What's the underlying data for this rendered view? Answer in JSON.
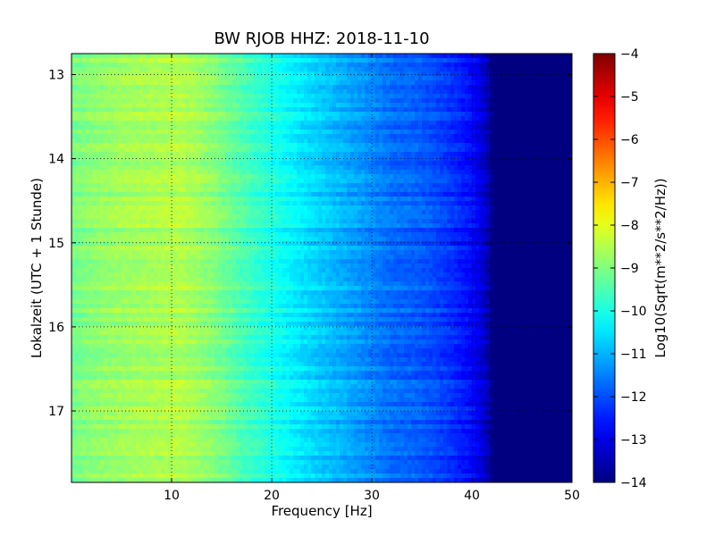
{
  "chart_data": {
    "type": "heatmap",
    "title": "BW RJOB HHZ: 2018-11-10",
    "xlabel": "Frequency [Hz]",
    "ylabel": "Lokalzeit (UTC + 1 Stunde)",
    "xlim": [
      0,
      50
    ],
    "ylim_hours": [
      12.75,
      17.85
    ],
    "y_axis_direction": "increasing-downward",
    "x_ticks": [
      10,
      20,
      30,
      40,
      50
    ],
    "y_ticks": [
      13,
      14,
      15,
      16,
      17
    ],
    "grid": true,
    "colormap": "jet",
    "colorbar": {
      "label": "Log10(Sqrt(m**2/s**2/Hz))",
      "range": [
        -14,
        -4
      ],
      "ticks": [
        -4,
        -5,
        -6,
        -7,
        -8,
        -9,
        -10,
        -11,
        -12,
        -13,
        -14
      ]
    },
    "frequency_profile_log10": {
      "frequency_hz": [
        0,
        2,
        5,
        8,
        11,
        14,
        17,
        20,
        23,
        26,
        29,
        32,
        34,
        36,
        38,
        40,
        41.5,
        42,
        50
      ],
      "value": [
        -9.1,
        -8.9,
        -8.7,
        -8.6,
        -8.5,
        -8.9,
        -9.5,
        -10.0,
        -10.5,
        -10.9,
        -11.3,
        -11.7,
        -11.8,
        -12.0,
        -12.3,
        -12.7,
        -13.4,
        -14.0,
        -14.0
      ]
    },
    "noise_floor_log10": -14.0,
    "annotations": []
  },
  "colors": {
    "background": "#ffffff",
    "axis": "#000000",
    "grid": "#000000"
  }
}
